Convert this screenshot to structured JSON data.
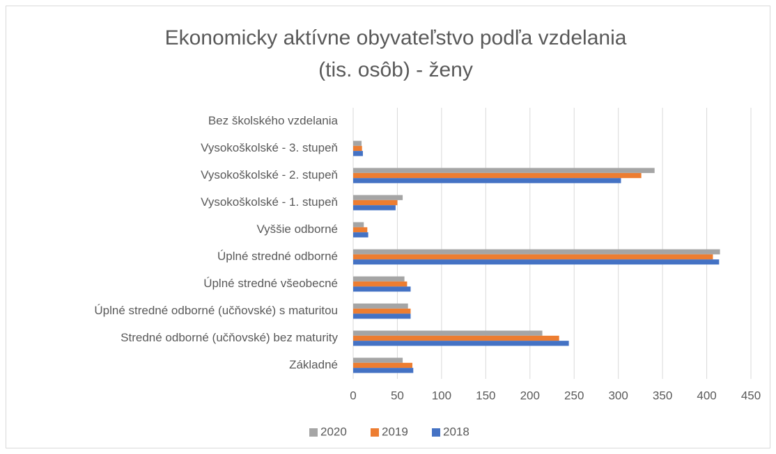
{
  "chart_data": {
    "type": "bar",
    "orientation": "horizontal",
    "title": [
      "Ekonomicky aktívne obyvateľstvo podľa vzdelania",
      "(tis. osôb) - ženy"
    ],
    "categories": [
      "Bez školského vzdelania",
      "Vysokoškolské - 3. stupeň",
      "Vysokoškolské - 2. stupeň",
      "Vysokoškolské - 1. stupeň",
      "Vyššie odborné",
      "Úplné stredné odborné",
      "Úplné stredné všeobecné",
      "Úplné stredné odborné (učňovské) s maturitou",
      "Stredné odborné (učňovské) bez maturity",
      "Základné"
    ],
    "series": [
      {
        "name": "2020",
        "color": "#a5a5a5",
        "values": [
          0,
          9.5,
          341,
          56,
          12,
          415,
          58,
          62,
          214,
          56
        ]
      },
      {
        "name": "2019",
        "color": "#ed7d31",
        "values": [
          0,
          10,
          326,
          50,
          16,
          407,
          61,
          65,
          233,
          67
        ]
      },
      {
        "name": "2018",
        "color": "#4472c4",
        "values": [
          0,
          11,
          303,
          48,
          17,
          414,
          65,
          65,
          244,
          68
        ]
      }
    ],
    "xlim": [
      0,
      450
    ],
    "xticks": [
      0,
      50,
      100,
      150,
      200,
      250,
      300,
      350,
      400,
      450
    ],
    "grid": true,
    "legend": "bottom"
  }
}
